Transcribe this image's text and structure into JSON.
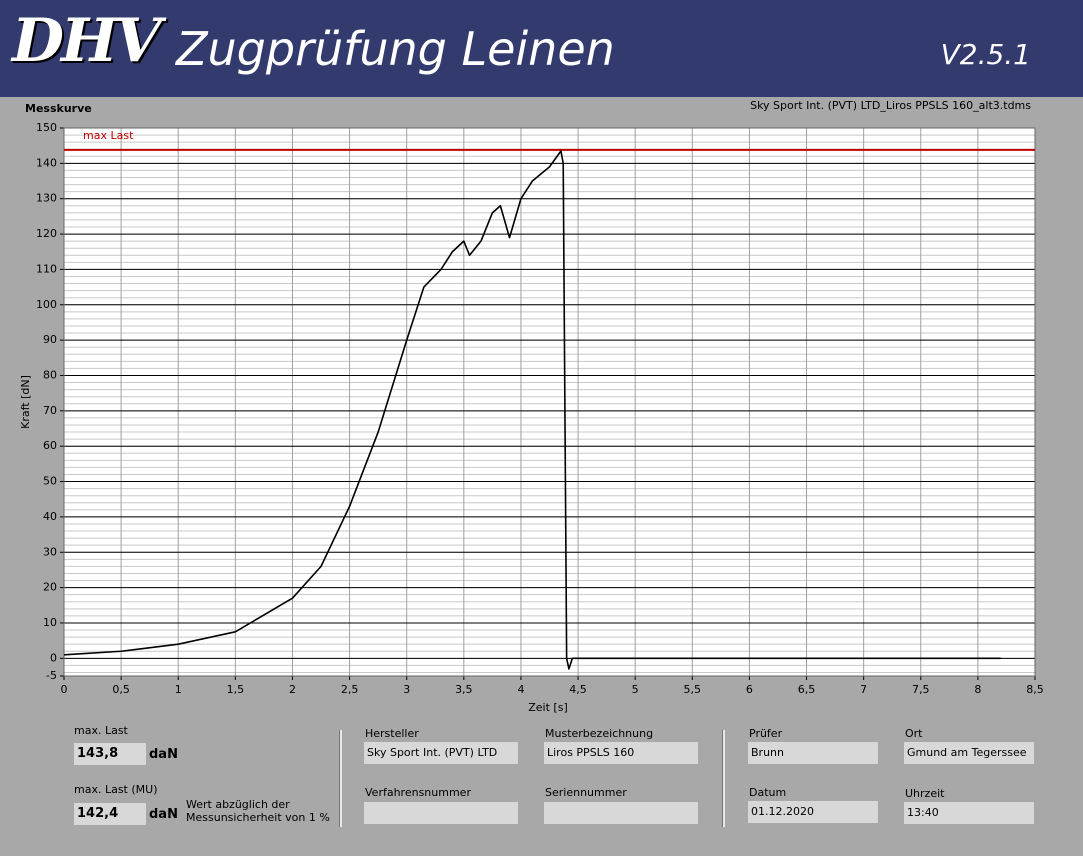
{
  "header": {
    "logo": "DHV",
    "title": "Zugprüfung Leinen",
    "version": "V2.5.1"
  },
  "chart_data": {
    "type": "line",
    "title": "Messkurve",
    "subtitle": "Sky Sport Int. (PVT) LTD_Liros PPSLS 160_alt3.tdms",
    "x_label": "Zeit [s]",
    "y_label": "Kraft [dN]",
    "color": "#000000",
    "x": [
      0,
      0.5,
      1,
      1.5,
      2,
      2.25,
      2.5,
      2.75,
      3,
      3.15,
      3.3,
      3.4,
      3.5,
      3.55,
      3.65,
      3.75,
      3.82,
      3.9,
      4.0,
      4.1,
      4.25,
      4.35,
      4.37,
      4.4,
      4.42,
      4.45,
      5,
      6,
      7,
      8,
      8.2
    ],
    "values": [
      1,
      2,
      4,
      7.5,
      17,
      26,
      43,
      64,
      90,
      105,
      110,
      115,
      118,
      114,
      118,
      126,
      128,
      119,
      130,
      135,
      139,
      143.5,
      140,
      0,
      -3,
      0,
      0,
      0,
      0,
      0,
      0
    ],
    "xlim": [
      0,
      8.5
    ],
    "ylim": [
      -5,
      150
    ],
    "xticks": [
      0,
      {
        "value": 0.5,
        "label": "0,5"
      },
      1,
      {
        "value": 1.5,
        "label": "1,5"
      },
      2,
      {
        "value": 2.5,
        "label": "2,5"
      },
      3,
      {
        "value": 3.5,
        "label": "3,5"
      },
      4,
      {
        "value": 4.5,
        "label": "4,5"
      },
      5,
      {
        "value": 5.5,
        "label": "5,5"
      },
      6,
      {
        "value": 6.5,
        "label": "6,5"
      },
      7,
      {
        "value": 7.5,
        "label": "7,5"
      },
      8,
      {
        "value": 8.5,
        "label": "8,5"
      }
    ],
    "yticks": [
      -5,
      0,
      10,
      20,
      30,
      40,
      50,
      60,
      70,
      80,
      90,
      100,
      110,
      120,
      130,
      140,
      150
    ],
    "grid": true,
    "y_minor_step": 2,
    "reference_line": {
      "label": "max Last",
      "value": 143.8,
      "color": "#c00000"
    }
  },
  "form": {
    "max_last": {
      "label": "max. Last",
      "value": "143,8",
      "unit": "daN"
    },
    "max_last_mu": {
      "label": "max. Last (MU)",
      "value": "142,4",
      "unit": "daN",
      "note": "Wert abzüglich der Messunsicherheit von 1 %"
    },
    "hersteller": {
      "label": "Hersteller",
      "value": "Sky Sport Int. (PVT) LTD"
    },
    "musterbezeichnung": {
      "label": "Musterbezeichnung",
      "value": "Liros PPSLS 160"
    },
    "verfahrensnummer": {
      "label": "Verfahrensnummer"
    },
    "seriennummer": {
      "label": "Seriennummer"
    },
    "pruefer": {
      "label": "Prüfer",
      "value": "Brunn"
    },
    "ort": {
      "label": "Ort",
      "value": "Gmund am Tegerssee"
    },
    "datum": {
      "label": "Datum",
      "value": "01.12.2020"
    },
    "uhrzeit": {
      "label": "Uhrzeit",
      "value": "13:40"
    }
  }
}
